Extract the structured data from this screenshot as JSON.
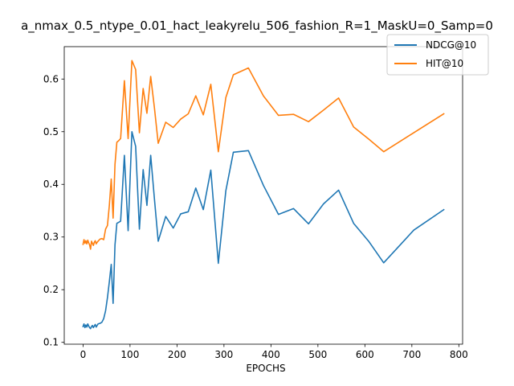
{
  "chart_data": {
    "type": "line",
    "title": "a_nmax_0.5_ntype_0.01_hact_leakyrelu_506_fashion_R=1_MaskU=0_Samp=0",
    "xlabel": "EPOCHS",
    "ylabel": "",
    "xlim": [
      -40,
      808
    ],
    "ylim": [
      0.0965,
      0.6615
    ],
    "xticks": [
      0,
      100,
      200,
      300,
      400,
      500,
      600,
      700,
      800
    ],
    "yticks": [
      0.1,
      0.2,
      0.3,
      0.4,
      0.5,
      0.6
    ],
    "ytick_labels": [
      "0.1",
      "0.2",
      "0.3",
      "0.4",
      "0.5",
      "0.6"
    ],
    "grid": false,
    "legend_position": "upper right",
    "series": [
      {
        "name": "NDCG@10",
        "color": "#1f77b4",
        "x": [
          0,
          2,
          4,
          6,
          8,
          10,
          12,
          14,
          16,
          18,
          20,
          22,
          24,
          26,
          28,
          30,
          32,
          36,
          40,
          44,
          48,
          52,
          56,
          60,
          64,
          68,
          72,
          76,
          80,
          88,
          96,
          104,
          112,
          120,
          128,
          136,
          144,
          152,
          160,
          176,
          192,
          208,
          224,
          240,
          256,
          272,
          288,
          304,
          320,
          352,
          384,
          416,
          448,
          480,
          512,
          544,
          576,
          608,
          640,
          704,
          768
        ],
        "y": [
          0.13,
          0.135,
          0.128,
          0.133,
          0.129,
          0.135,
          0.131,
          0.128,
          0.126,
          0.13,
          0.132,
          0.128,
          0.131,
          0.134,
          0.129,
          0.132,
          0.135,
          0.136,
          0.138,
          0.145,
          0.16,
          0.185,
          0.215,
          0.248,
          0.174,
          0.285,
          0.326,
          0.328,
          0.33,
          0.455,
          0.312,
          0.5,
          0.472,
          0.315,
          0.428,
          0.36,
          0.455,
          0.372,
          0.292,
          0.339,
          0.317,
          0.344,
          0.348,
          0.393,
          0.352,
          0.427,
          0.25,
          0.388,
          0.461,
          0.464,
          0.398,
          0.343,
          0.354,
          0.325,
          0.363,
          0.389,
          0.326,
          0.292,
          0.251,
          0.313,
          0.352
        ]
      },
      {
        "name": "HIT@10",
        "color": "#ff7f0e",
        "x": [
          0,
          2,
          4,
          6,
          8,
          10,
          12,
          14,
          16,
          18,
          20,
          22,
          24,
          26,
          28,
          30,
          32,
          36,
          40,
          44,
          48,
          52,
          56,
          60,
          64,
          68,
          72,
          76,
          80,
          88,
          96,
          104,
          112,
          120,
          128,
          136,
          144,
          152,
          160,
          176,
          192,
          208,
          224,
          240,
          256,
          272,
          288,
          304,
          320,
          352,
          384,
          416,
          448,
          480,
          512,
          544,
          576,
          608,
          640,
          704,
          768
        ],
        "y": [
          0.286,
          0.295,
          0.288,
          0.293,
          0.287,
          0.294,
          0.289,
          0.285,
          0.277,
          0.292,
          0.288,
          0.284,
          0.29,
          0.293,
          0.287,
          0.29,
          0.292,
          0.296,
          0.297,
          0.295,
          0.315,
          0.322,
          0.36,
          0.41,
          0.336,
          0.438,
          0.48,
          0.483,
          0.487,
          0.597,
          0.487,
          0.635,
          0.618,
          0.498,
          0.582,
          0.535,
          0.605,
          0.545,
          0.478,
          0.518,
          0.508,
          0.524,
          0.534,
          0.568,
          0.532,
          0.59,
          0.462,
          0.565,
          0.608,
          0.621,
          0.568,
          0.531,
          0.533,
          0.519,
          0.541,
          0.564,
          0.509,
          0.486,
          0.462,
          0.498,
          0.534
        ]
      }
    ]
  }
}
